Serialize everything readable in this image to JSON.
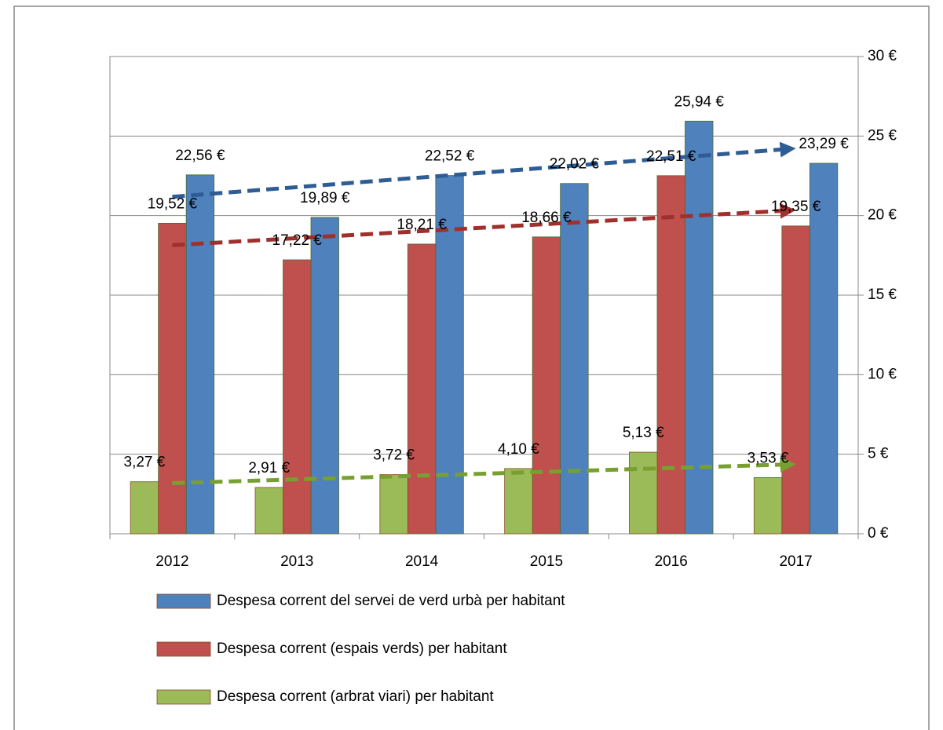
{
  "chart_data": {
    "type": "bar",
    "categories": [
      "2012",
      "2013",
      "2014",
      "2015",
      "2016",
      "2017"
    ],
    "series": [
      {
        "name": "Despesa corrent del servei de verd urbà per habitant",
        "color": "#4f81bd",
        "trendline_color": "#2e5c94",
        "values": [
          22.56,
          19.89,
          22.52,
          22.02,
          25.94,
          23.29
        ],
        "value_labels": [
          "22,56 €",
          "19,89 €",
          "22,52 €",
          "22,02 €",
          "25,94 €",
          "23,29 €"
        ]
      },
      {
        "name": "Despesa corrent (espais verds) per habitant",
        "color": "#c0504d",
        "trendline_color": "#a0302c",
        "values": [
          19.52,
          17.22,
          18.21,
          18.66,
          22.51,
          19.35
        ],
        "value_labels": [
          "19,52 €",
          "17,22 €",
          "18,21 €",
          "18,66 €",
          "22,51 €",
          "19,35 €"
        ]
      },
      {
        "name": "Despesa corrent (arbrat viari) per habitant",
        "color": "#9bbb59",
        "trendline_color": "#77a030",
        "values": [
          3.27,
          2.91,
          3.72,
          4.1,
          5.13,
          3.53
        ],
        "value_labels": [
          "3,27 €",
          "2,91 €",
          "3,72 €",
          "4,10 €",
          "5,13 €",
          "3,53 €"
        ]
      }
    ],
    "ylim": [
      0,
      30
    ],
    "yticks": [
      {
        "value": 0,
        "label": "0 €"
      },
      {
        "value": 5,
        "label": "5 €"
      },
      {
        "value": 10,
        "label": "10 €"
      },
      {
        "value": 15,
        "label": "15 €"
      },
      {
        "value": 20,
        "label": "20 €"
      },
      {
        "value": 25,
        "label": "25 €"
      },
      {
        "value": 30,
        "label": "30 €"
      }
    ],
    "y_axis_side": "right",
    "grid": true,
    "trendline": true,
    "legend": "bottom"
  }
}
